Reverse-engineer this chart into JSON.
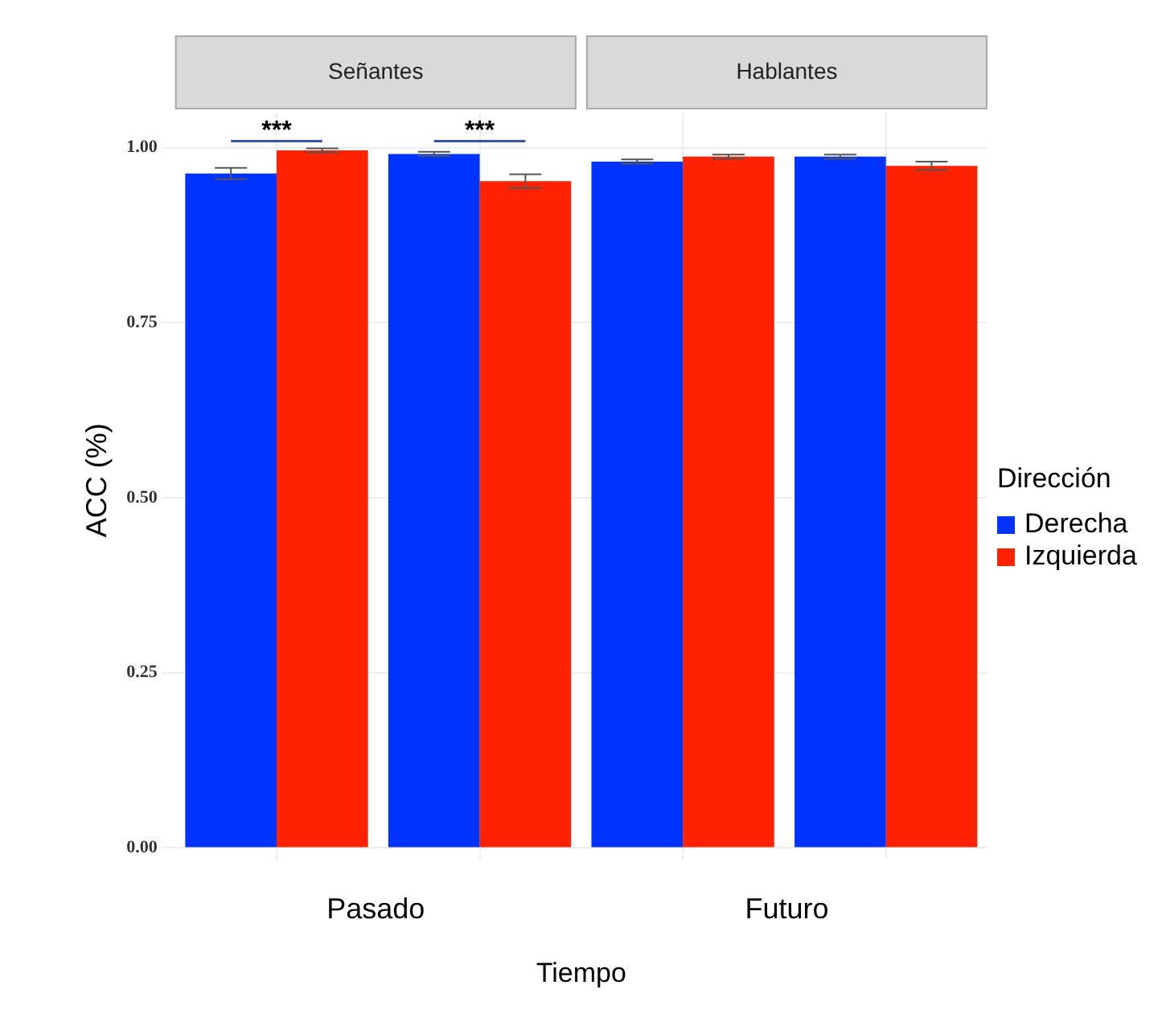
{
  "chart_data": {
    "type": "bar",
    "xlabel": "Tiempo",
    "ylabel": "ACC (%)",
    "legend_title": "Dirección",
    "categories": [
      null,
      null,
      null,
      null
    ],
    "ylim": [
      0,
      1.05
    ],
    "yticks": [
      {
        "value": 0,
        "label": "0.00"
      },
      {
        "value": 0.25,
        "label": "0.25"
      },
      {
        "value": 0.5,
        "label": "0.50"
      },
      {
        "value": 0.75,
        "label": "0.75"
      },
      {
        "value": 1,
        "label": "1.00"
      }
    ],
    "grid": true,
    "legend": "right",
    "series": [
      {
        "name": "Derecha",
        "color": "#0033ff",
        "values": [
          0.963,
          0.991,
          0.98,
          0.987
        ],
        "errors": [
          0.008,
          0.003,
          0.003,
          0.003
        ]
      },
      {
        "name": "Izquierda",
        "color": "#ff2200",
        "values": [
          0.996,
          0.952,
          0.987,
          0.974
        ],
        "errors": [
          0.003,
          0.01,
          0.003,
          0.006
        ]
      }
    ],
    "annotations": [
      "Señantes",
      "Hablantes",
      "***",
      "***",
      "Pasado",
      "Futuro"
    ]
  }
}
